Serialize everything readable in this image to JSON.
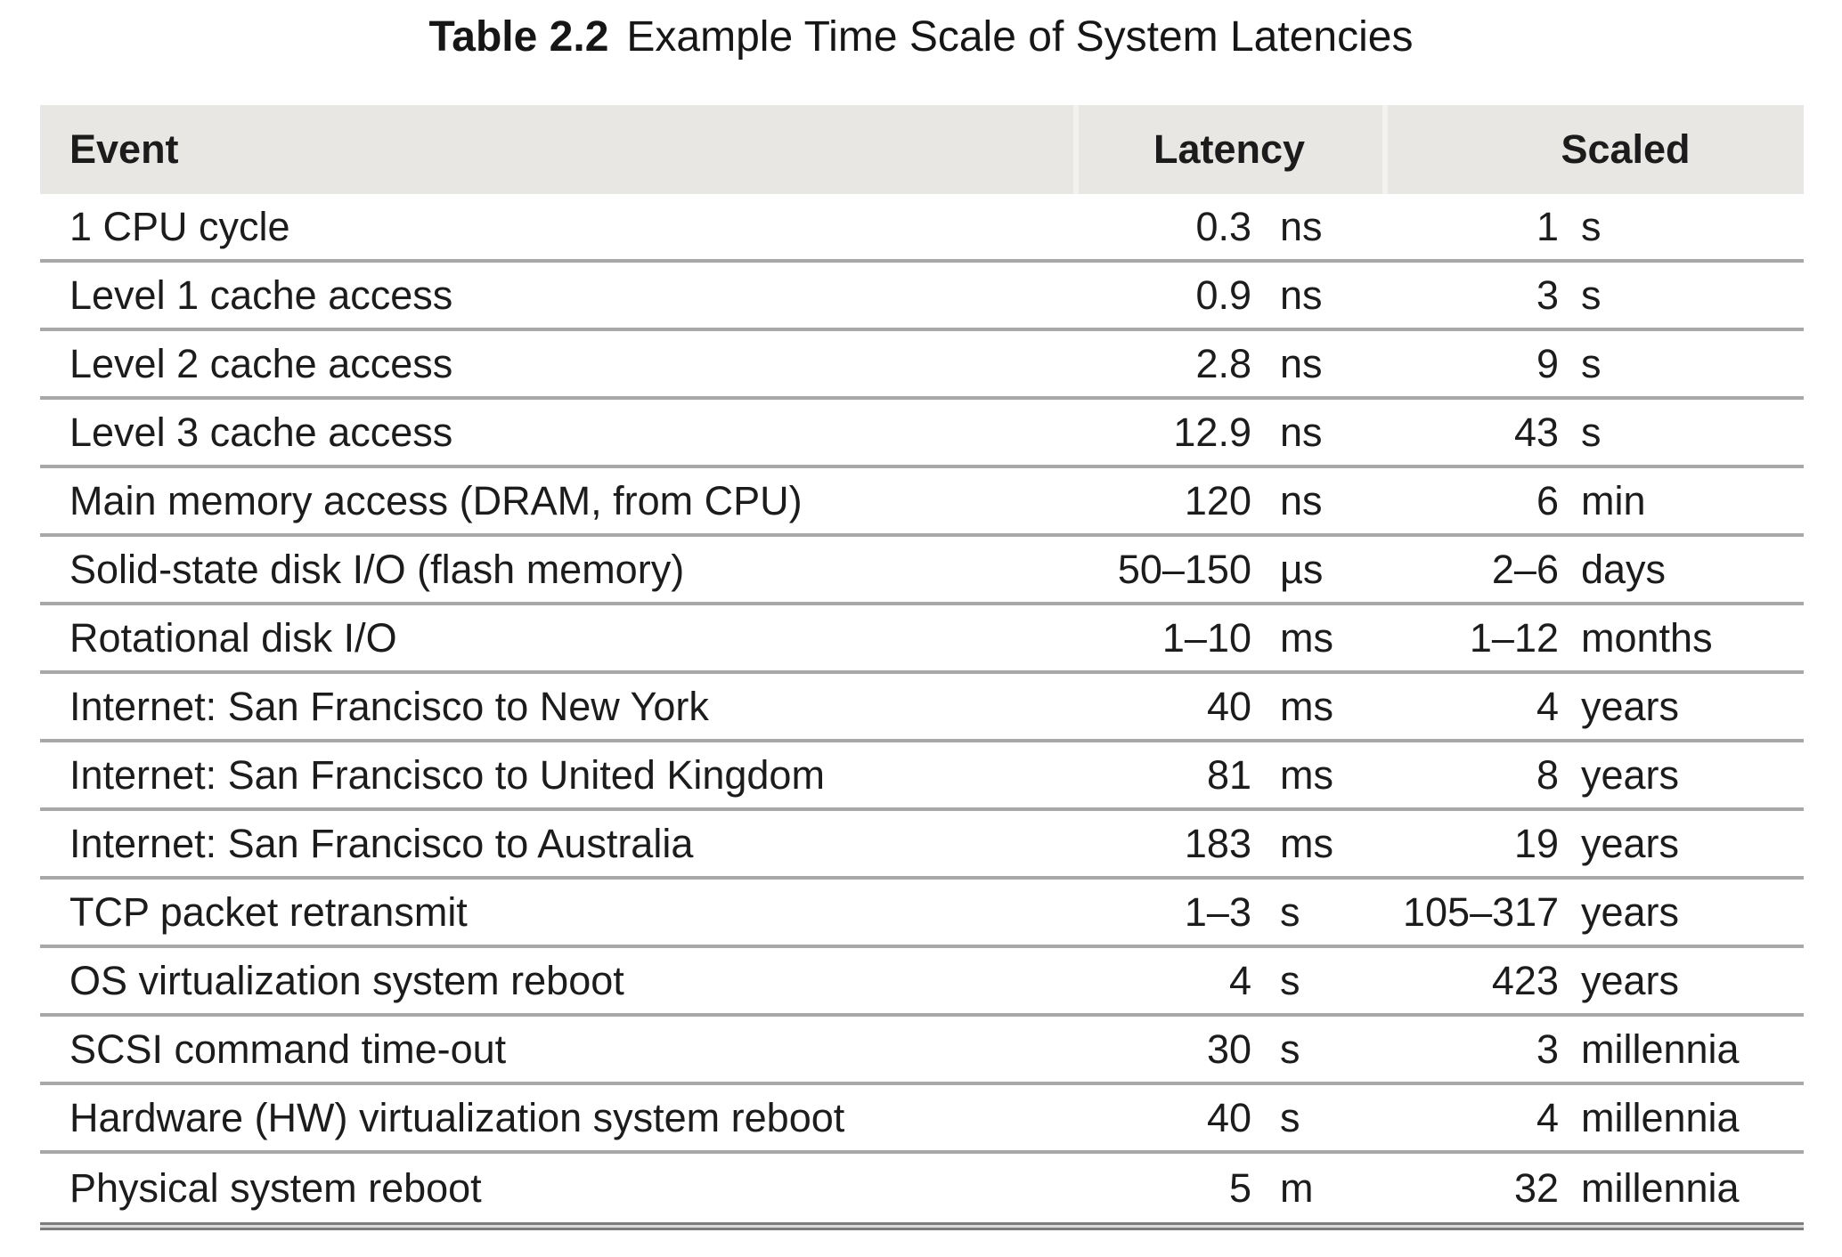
{
  "page": {
    "title": {
      "label": "Table 2.2",
      "text": "Example Time Scale of System Latencies"
    }
  },
  "table": {
    "headers": {
      "event": "Event",
      "latency": "Latency",
      "scaled": "Scaled"
    },
    "rows": [
      {
        "event": "1 CPU cycle",
        "latency_value": "0.3",
        "latency_unit": "ns",
        "scaled_value": "1",
        "scaled_unit": "s"
      },
      {
        "event": "Level 1 cache access",
        "latency_value": "0.9",
        "latency_unit": "ns",
        "scaled_value": "3",
        "scaled_unit": "s"
      },
      {
        "event": "Level 2 cache access",
        "latency_value": "2.8",
        "latency_unit": "ns",
        "scaled_value": "9",
        "scaled_unit": "s"
      },
      {
        "event": "Level 3 cache access",
        "latency_value": "12.9",
        "latency_unit": "ns",
        "scaled_value": "43",
        "scaled_unit": "s"
      },
      {
        "event": "Main memory access (DRAM, from CPU)",
        "latency_value": "120",
        "latency_unit": "ns",
        "scaled_value": "6",
        "scaled_unit": "min"
      },
      {
        "event": "Solid-state disk I/O (flash memory)",
        "latency_value": "50–150",
        "latency_unit": "µs",
        "scaled_value": "2–6",
        "scaled_unit": "days"
      },
      {
        "event": "Rotational disk I/O",
        "latency_value": "1–10",
        "latency_unit": "ms",
        "scaled_value": "1–12",
        "scaled_unit": "months"
      },
      {
        "event": "Internet: San Francisco to New York",
        "latency_value": "40",
        "latency_unit": "ms",
        "scaled_value": "4",
        "scaled_unit": "years"
      },
      {
        "event": "Internet: San Francisco to United Kingdom",
        "latency_value": "81",
        "latency_unit": "ms",
        "scaled_value": "8",
        "scaled_unit": "years"
      },
      {
        "event": "Internet: San Francisco to Australia",
        "latency_value": "183",
        "latency_unit": "ms",
        "scaled_value": "19",
        "scaled_unit": "years"
      },
      {
        "event": "TCP packet retransmit",
        "latency_value": "1–3",
        "latency_unit": "s",
        "scaled_value": "105–317",
        "scaled_unit": "years"
      },
      {
        "event": "OS virtualization system reboot",
        "latency_value": "4",
        "latency_unit": "s",
        "scaled_value": "423",
        "scaled_unit": "years"
      },
      {
        "event": "SCSI command time-out",
        "latency_value": "30",
        "latency_unit": "s",
        "scaled_value": "3",
        "scaled_unit": "millennia"
      },
      {
        "event": "Hardware (HW) virtualization system reboot",
        "latency_value": "40",
        "latency_unit": "s",
        "scaled_value": "4",
        "scaled_unit": "millennia"
      },
      {
        "event": "Physical system reboot",
        "latency_value": "5",
        "latency_unit": "m",
        "scaled_value": "32",
        "scaled_unit": "millennia"
      }
    ]
  },
  "colors": {
    "header_bg": "#e9e7e4",
    "separator": "#a8a8a8",
    "bottom_rule": "#7d7d7d",
    "text": "#1c1c1c"
  }
}
